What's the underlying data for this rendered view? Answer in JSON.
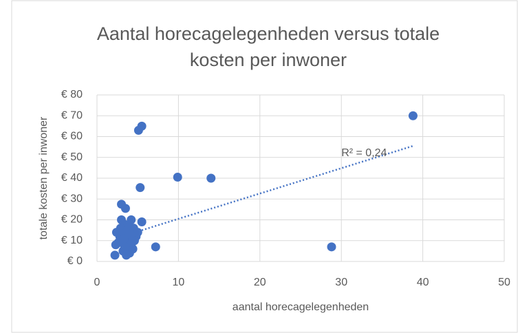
{
  "chart_data": {
    "type": "scatter",
    "title": "Aantal horecagelegenheden versus totale kosten per inwoner",
    "x_label": "aantal horecagelegenheden",
    "y_label": "totale kosten per inwoner",
    "color": "#4472c4",
    "x": [
      38.8,
      5.5,
      5.1,
      9.9,
      14,
      5.3,
      3,
      3.5,
      28.8,
      7.2,
      5.5,
      2.2,
      2.3,
      2.4,
      3,
      3.3,
      3.8,
      4.2,
      4,
      3.5,
      3,
      2.8,
      3.2,
      3.6,
      4,
      4.4,
      4.8,
      5,
      4.5,
      3.7,
      3.1,
      2.9,
      3.4,
      3.9,
      4.3,
      4.6,
      2.6,
      3.6,
      4.1,
      3.3
    ],
    "values": [
      70,
      65,
      63,
      40.5,
      40,
      35.5,
      27.5,
      25.5,
      7,
      7,
      19,
      3,
      8,
      14,
      20,
      18,
      17,
      20,
      15,
      12,
      10,
      12,
      5,
      3,
      4,
      6,
      12,
      14,
      16,
      9,
      14,
      16,
      7,
      11,
      9,
      10,
      9,
      14,
      13,
      11
    ],
    "trendline": {
      "x": [
        5.5,
        38.8
      ],
      "y": [
        15,
        55.5
      ],
      "style": "dotted"
    },
    "annotation": {
      "text": "R² = 0,24",
      "x": 30,
      "y": 52
    },
    "xlim": [
      0,
      50
    ],
    "xticks": [
      0,
      10,
      20,
      30,
      40,
      50
    ],
    "ylim": [
      0,
      80
    ],
    "yticks": [
      {
        "value": 0,
        "label": "€ 0"
      },
      {
        "value": 10,
        "label": "€ 10"
      },
      {
        "value": 20,
        "label": "€ 20"
      },
      {
        "value": 30,
        "label": "€ 30"
      },
      {
        "value": 40,
        "label": "€ 40"
      },
      {
        "value": 50,
        "label": "€ 50"
      },
      {
        "value": 60,
        "label": "€ 60"
      },
      {
        "value": 70,
        "label": "€ 70"
      },
      {
        "value": 80,
        "label": "€ 80"
      }
    ],
    "grid": true
  }
}
